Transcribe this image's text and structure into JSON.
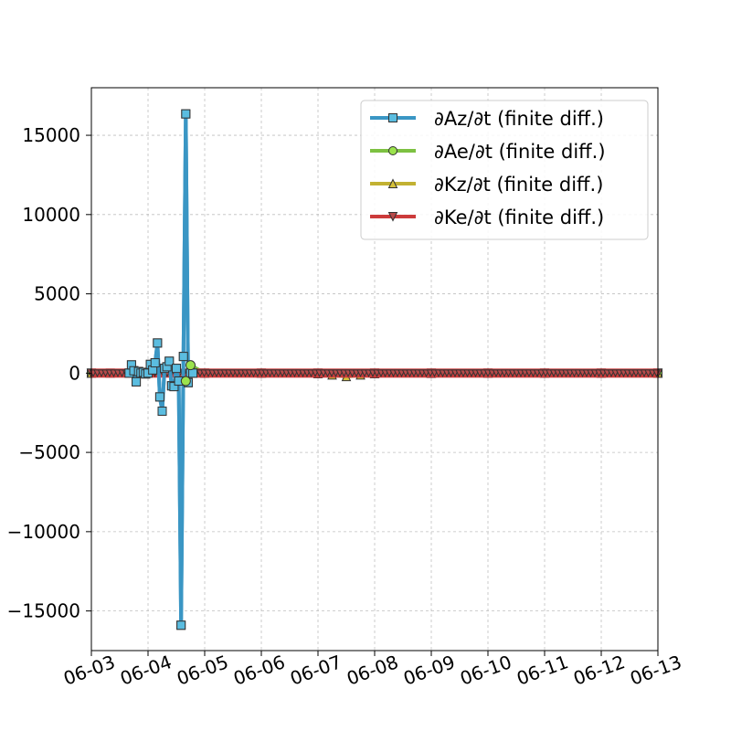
{
  "chart_data": {
    "type": "line",
    "title": "",
    "xlabel": "",
    "ylabel": "",
    "x_ticks": [
      "06-03",
      "06-04",
      "06-05",
      "06-06",
      "06-07",
      "06-08",
      "06-09",
      "06-10",
      "06-11",
      "06-12",
      "06-13"
    ],
    "y_ticks": [
      "−15000",
      "−10000",
      "−5000",
      "0",
      "5000",
      "10000",
      "15000"
    ],
    "xlim": [
      "06-03",
      "06-13"
    ],
    "ylim": [
      -17500,
      18000
    ],
    "grid": true,
    "legend_position": "top-right",
    "series": [
      {
        "name": "∂Az/∂t (finite diff.)",
        "color": "#3a96c4",
        "marker": "square",
        "marker_fill": "#5bbde0",
        "x": [
          "06-03 00:00",
          "06-03 08:00",
          "06-03 16:00",
          "06-03 17:00",
          "06-03 18:00",
          "06-03 19:00",
          "06-03 20:00",
          "06-03 21:00",
          "06-03 22:00",
          "06-03 23:00",
          "06-04 00:00",
          "06-04 01:00",
          "06-04 02:00",
          "06-04 03:00",
          "06-04 04:00",
          "06-04 05:00",
          "06-04 06:00",
          "06-04 07:00",
          "06-04 08:00",
          "06-04 09:00",
          "06-04 10:00",
          "06-04 11:00",
          "06-04 12:00",
          "06-04 13:00",
          "06-04 14:00",
          "06-04 15:00",
          "06-04 16:00",
          "06-04 17:00",
          "06-04 18:00",
          "06-04 19:00",
          "06-05 00:00",
          "06-06 00:00",
          "06-07 00:00",
          "06-08 00:00",
          "06-09 00:00",
          "06-10 00:00",
          "06-11 00:00",
          "06-12 00:00",
          "06-13 00:00"
        ],
        "y": [
          0,
          0,
          0,
          520,
          150,
          -550,
          100,
          0,
          50,
          -50,
          0,
          550,
          200,
          650,
          1900,
          -1500,
          -2400,
          300,
          400,
          750,
          -800,
          -850,
          300,
          -500,
          -15900,
          1050,
          16350,
          -600,
          0,
          0,
          0,
          0,
          0,
          0,
          0,
          0,
          0,
          0,
          0
        ]
      },
      {
        "name": "∂Ae/∂t (finite diff.)",
        "color": "#7dc142",
        "marker": "circle",
        "marker_fill": "#9be34d",
        "x": [
          "06-03 00:00",
          "06-04 00:00",
          "06-04 12:00",
          "06-04 15:00",
          "06-04 16:00",
          "06-04 17:00",
          "06-04 18:00",
          "06-05 00:00",
          "06-06 00:00",
          "06-07 00:00",
          "06-08 00:00",
          "06-09 00:00",
          "06-10 00:00",
          "06-11 00:00",
          "06-12 00:00",
          "06-13 00:00"
        ],
        "y": [
          0,
          0,
          0,
          0,
          -500,
          0,
          500,
          0,
          0,
          0,
          0,
          0,
          0,
          0,
          0,
          0
        ]
      },
      {
        "name": "∂Kz/∂t (finite diff.)",
        "color": "#c2b132",
        "marker": "triangle-up",
        "marker_fill": "#d6c23a",
        "x": [
          "06-03 00:00",
          "06-05 00:00",
          "06-06 00:00",
          "06-07 00:00",
          "06-07 06:00",
          "06-07 12:00",
          "06-07 18:00",
          "06-08 00:00",
          "06-09 00:00",
          "06-10 00:00",
          "06-11 00:00",
          "06-12 00:00",
          "06-13 00:00"
        ],
        "y": [
          0,
          0,
          0,
          -40,
          -120,
          -220,
          -120,
          -40,
          -20,
          0,
          0,
          0,
          0
        ]
      },
      {
        "name": "∂Ke/∂t (finite diff.)",
        "color": "#cc3b3b",
        "marker": "triangle-down",
        "marker_fill": "#b84a4a",
        "x": [
          "06-03 00:00",
          "06-04 00:00",
          "06-05 00:00",
          "06-06 00:00",
          "06-07 00:00",
          "06-08 00:00",
          "06-09 00:00",
          "06-10 00:00",
          "06-11 00:00",
          "06-12 00:00",
          "06-13 00:00"
        ],
        "y": [
          0,
          0,
          0,
          0,
          0,
          0,
          0,
          0,
          0,
          0,
          0
        ]
      }
    ]
  }
}
